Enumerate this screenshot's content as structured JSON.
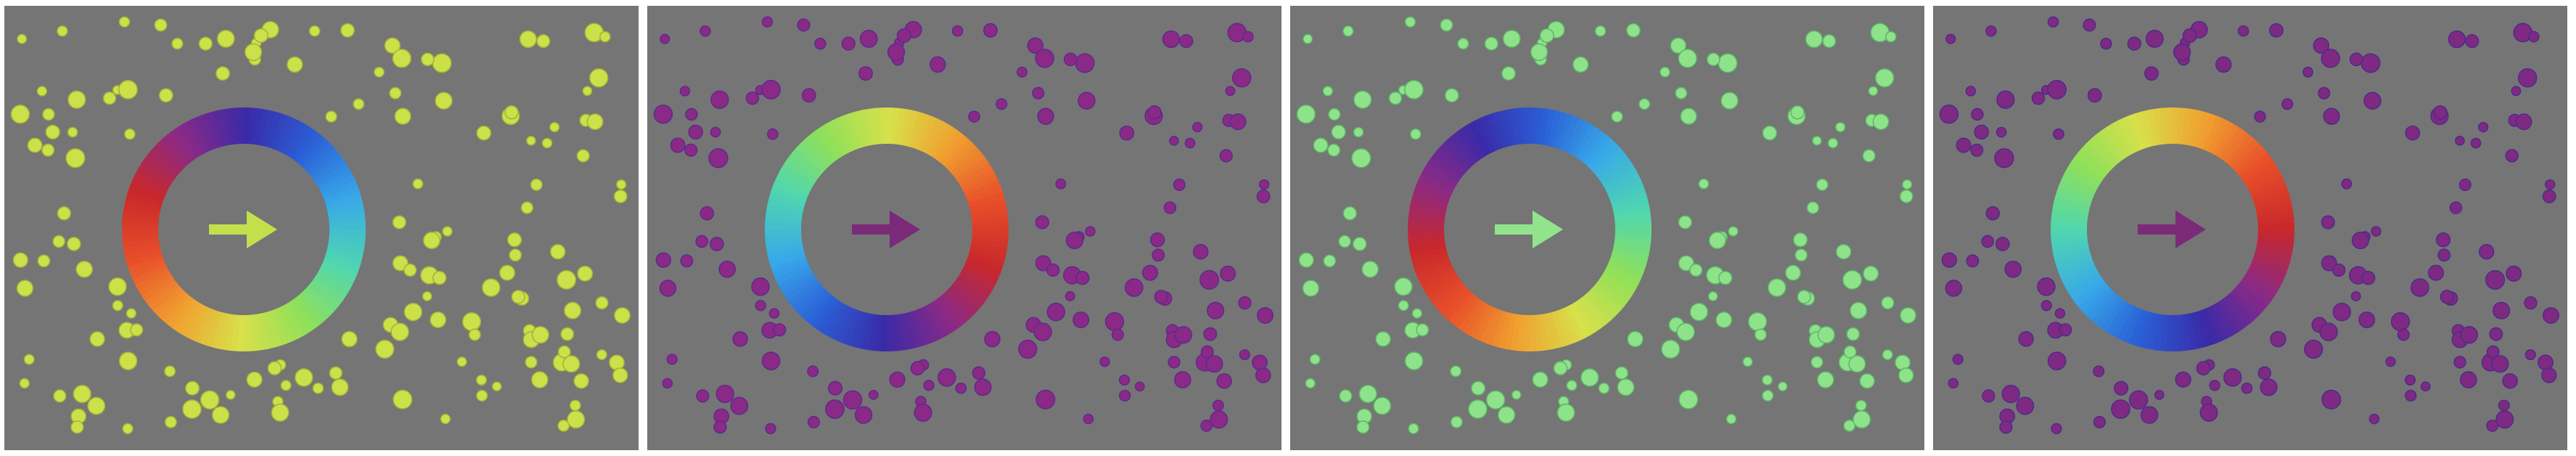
{
  "panels": [
    {
      "id": "panel-1",
      "dot_color": "#cce04a",
      "dot_edge": "#9fb33a",
      "arrow_color": "#c3e04c",
      "ring_palette": "rotation-a"
    },
    {
      "id": "panel-2",
      "dot_color": "#8a2a86",
      "dot_edge": "#5c2a8a",
      "arrow_color": "#7a2a78",
      "ring_palette": "rotation-b"
    },
    {
      "id": "panel-3",
      "dot_color": "#8ee38a",
      "dot_edge": "#5fb36a",
      "arrow_color": "#92e48c",
      "ring_palette": "rotation-c"
    },
    {
      "id": "panel-4",
      "dot_color": "#7e2a82",
      "dot_edge": "#4f2a88",
      "arrow_color": "#7b2a78",
      "ring_palette": "rotation-d"
    }
  ],
  "icons": {
    "center_arrow": "right-arrow-icon",
    "color_ring": "color-wheel-ring"
  },
  "colors": {
    "background": "#757575",
    "separator": "#ffffff"
  }
}
